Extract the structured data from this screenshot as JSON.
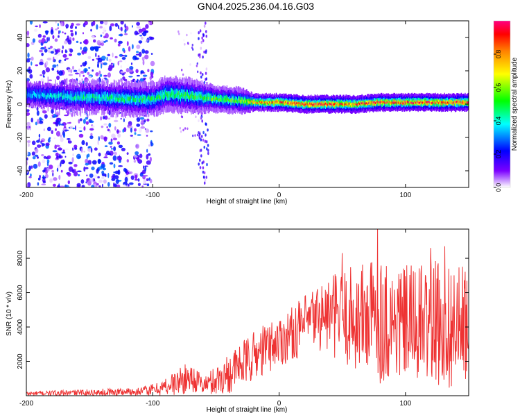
{
  "title": "GN04.2025.236.04.16.G03",
  "chart_data": [
    {
      "type": "heatmap",
      "name": "spectrogram",
      "xlabel": "Height of straight line (km)",
      "ylabel": "Frequency (Hz)",
      "xlim": [
        -200,
        150
      ],
      "ylim": [
        -50,
        50
      ],
      "xticks": [
        -200,
        -100,
        0,
        100
      ],
      "yticks": [
        -40,
        -20,
        0,
        20,
        40
      ],
      "colorbar": {
        "label": "Normalized spectral amplitude",
        "ticks": [
          0.0,
          0.2,
          0.4,
          0.6,
          0.8
        ],
        "range": [
          0,
          1
        ]
      },
      "ridge": [
        {
          "x": -200,
          "y": 6,
          "spread": 4,
          "amp": 0.35
        },
        {
          "x": -180,
          "y": 5,
          "spread": 4,
          "amp": 0.4
        },
        {
          "x": -160,
          "y": 4,
          "spread": 4,
          "amp": 0.45
        },
        {
          "x": -140,
          "y": 4,
          "spread": 4,
          "amp": 0.48
        },
        {
          "x": -120,
          "y": 3,
          "spread": 4,
          "amp": 0.5
        },
        {
          "x": -100,
          "y": 3,
          "spread": 4,
          "amp": 0.5
        },
        {
          "x": -90,
          "y": 6,
          "spread": 4,
          "amp": 0.55
        },
        {
          "x": -70,
          "y": 5,
          "spread": 4,
          "amp": 0.55
        },
        {
          "x": -50,
          "y": 3,
          "spread": 3,
          "amp": 0.58
        },
        {
          "x": -30,
          "y": 2,
          "spread": 3,
          "amp": 0.6
        },
        {
          "x": -20,
          "y": 1,
          "spread": 2,
          "amp": 0.8
        },
        {
          "x": 0,
          "y": 1,
          "spread": 2,
          "amp": 0.9
        },
        {
          "x": 20,
          "y": 0,
          "spread": 2,
          "amp": 0.95
        },
        {
          "x": 40,
          "y": 0,
          "spread": 2,
          "amp": 0.95
        },
        {
          "x": 60,
          "y": 0,
          "spread": 2,
          "amp": 0.9
        },
        {
          "x": 80,
          "y": 1,
          "spread": 2,
          "amp": 0.95
        },
        {
          "x": 100,
          "y": 1,
          "spread": 2,
          "amp": 0.95
        },
        {
          "x": 120,
          "y": 1,
          "spread": 2,
          "amp": 0.95
        },
        {
          "x": 150,
          "y": 1,
          "spread": 2,
          "amp": 0.95
        }
      ],
      "noise_region": {
        "x_from": -200,
        "x_to": -100,
        "scatter_amp": 0.3
      },
      "noise_streak": {
        "x_from": -64,
        "x_to": -56,
        "scatter_amp": 0.25
      }
    },
    {
      "type": "line",
      "name": "snr",
      "xlabel": "Height of straight line (km)",
      "ylabel": "SNR (10 * v/v)",
      "xlim": [
        -200,
        150
      ],
      "ylim": [
        0,
        9700
      ],
      "xticks": [
        -200,
        -100,
        0,
        100
      ],
      "yticks": [
        2000,
        4000,
        6000,
        8000
      ],
      "color": "#ee3333",
      "series": [
        {
          "name": "SNR",
          "envelope": [
            {
              "x": -200,
              "base": 120,
              "amp": 120
            },
            {
              "x": -150,
              "base": 180,
              "amp": 200
            },
            {
              "x": -110,
              "base": 250,
              "amp": 250
            },
            {
              "x": -95,
              "base": 400,
              "amp": 400
            },
            {
              "x": -80,
              "base": 800,
              "amp": 800
            },
            {
              "x": -70,
              "base": 1100,
              "amp": 900
            },
            {
              "x": -60,
              "base": 600,
              "amp": 500
            },
            {
              "x": -50,
              "base": 900,
              "amp": 900
            },
            {
              "x": -40,
              "base": 1300,
              "amp": 1200
            },
            {
              "x": -30,
              "base": 1800,
              "amp": 1300
            },
            {
              "x": -20,
              "base": 2300,
              "amp": 1500
            },
            {
              "x": -10,
              "base": 2800,
              "amp": 1500
            },
            {
              "x": 0,
              "base": 3200,
              "amp": 1500
            },
            {
              "x": 10,
              "base": 3600,
              "amp": 1600
            },
            {
              "x": 20,
              "base": 4100,
              "amp": 1700
            },
            {
              "x": 30,
              "base": 4600,
              "amp": 2000
            },
            {
              "x": 40,
              "base": 4700,
              "amp": 2300
            },
            {
              "x": 50,
              "base": 4600,
              "amp": 2800
            },
            {
              "x": 60,
              "base": 4500,
              "amp": 3200
            },
            {
              "x": 70,
              "base": 4600,
              "amp": 3500
            },
            {
              "x": 80,
              "base": 4500,
              "amp": 3800
            },
            {
              "x": 90,
              "base": 4300,
              "amp": 3500
            },
            {
              "x": 100,
              "base": 4200,
              "amp": 3400
            },
            {
              "x": 110,
              "base": 4200,
              "amp": 3500
            },
            {
              "x": 120,
              "base": 4200,
              "amp": 3600
            },
            {
              "x": 130,
              "base": 4200,
              "amp": 3800
            },
            {
              "x": 140,
              "base": 4000,
              "amp": 3600
            },
            {
              "x": 150,
              "base": 4000,
              "amp": 3500
            }
          ],
          "peaks": [
            {
              "x": 78,
              "y": 9700
            },
            {
              "x": 50,
              "y": 8300
            },
            {
              "x": 120,
              "y": 8600
            },
            {
              "x": 131,
              "y": 8700
            }
          ]
        }
      ]
    }
  ]
}
